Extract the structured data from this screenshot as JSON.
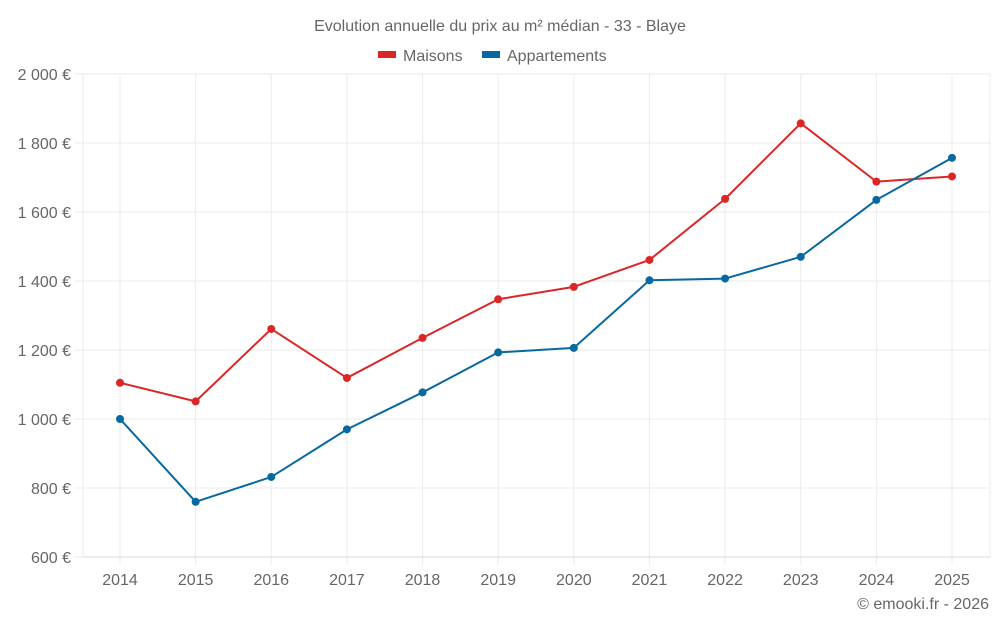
{
  "chart_data": {
    "type": "line",
    "title": "Evolution annuelle du prix au m² médian - 33 - Blaye",
    "xlabel": "",
    "ylabel": "",
    "x": [
      "2014",
      "2015",
      "2016",
      "2017",
      "2018",
      "2019",
      "2020",
      "2021",
      "2022",
      "2023",
      "2024",
      "2025"
    ],
    "series": [
      {
        "name": "Maisons",
        "color": "#dc2626",
        "values": [
          1105,
          1051,
          1261,
          1119,
          1235,
          1347,
          1383,
          1461,
          1638,
          1857,
          1688,
          1703
        ]
      },
      {
        "name": "Appartements",
        "color": "#0868a0",
        "values": [
          1000,
          760,
          832,
          970,
          1077,
          1193,
          1206,
          1402,
          1407,
          1470,
          1635,
          1757
        ]
      }
    ],
    "ylim": [
      600,
      2000
    ],
    "yticks": [
      600,
      800,
      1000,
      1200,
      1400,
      1600,
      1800,
      2000
    ],
    "ytick_labels": [
      "600 €",
      "800 €",
      "1 000 €",
      "1 200 €",
      "1 400 €",
      "1 600 €",
      "1 800 €",
      "2 000 €"
    ],
    "grid": true,
    "legend_position": "top-center"
  },
  "credit": "© emooki.fr - 2026"
}
